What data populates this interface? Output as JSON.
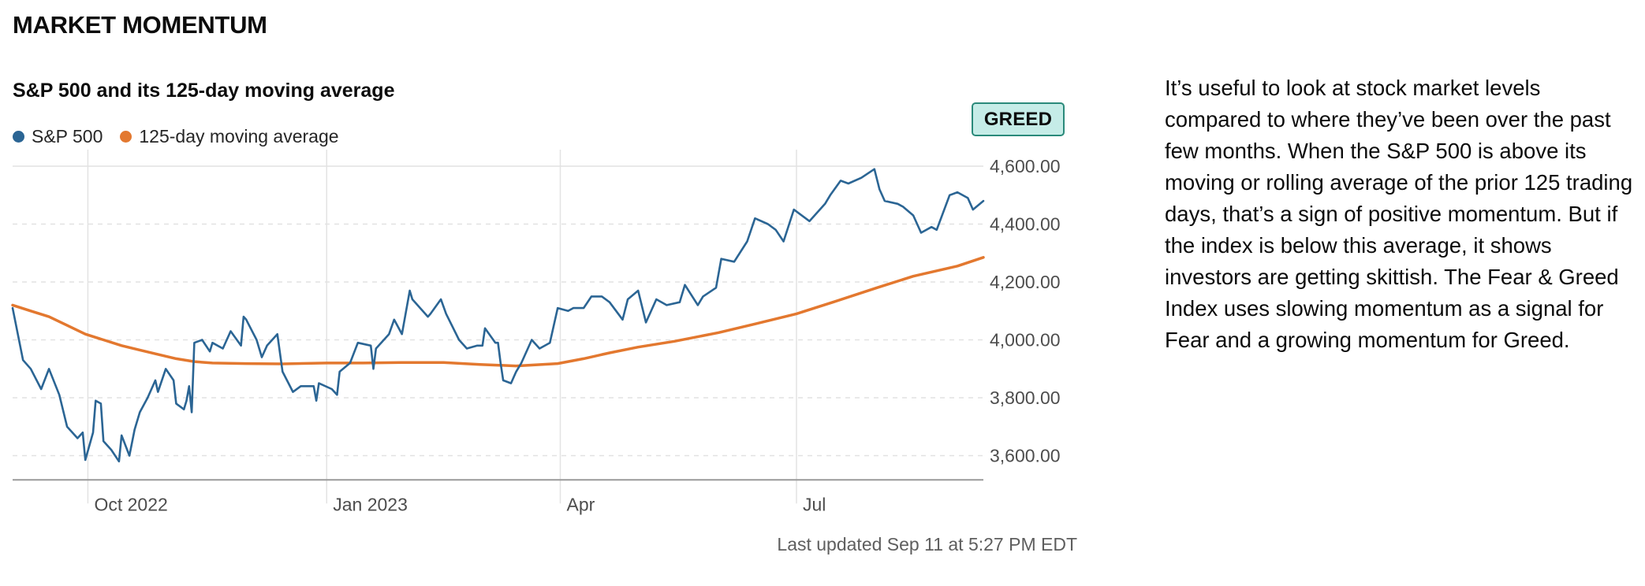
{
  "section_title": "MARKET MOMENTUM",
  "badge": {
    "label": "GREED",
    "background": "#c5ece7",
    "border": "#2a8a7a"
  },
  "last_updated": "Last updated Sep 11 at 5:27 PM EDT",
  "description": "It’s useful to look at stock market levels compared to where they’ve been over the past few months. When the S&P 500 is above its moving or rolling average of the prior 125 trading days, that’s a sign of positive momentum. But if the index is below this average, it shows investors are getting skittish. The Fear & Greed Index uses slowing momentum as a signal for Fear and a growing momentum for Greed.",
  "chart_data": {
    "type": "line",
    "title": "S&P 500 and its 125-day moving average",
    "xlabel": "",
    "ylabel": "",
    "x_range": [
      "2022-09-02",
      "2023-09-11"
    ],
    "ylim": [
      3500,
      4600
    ],
    "y_ticks": [
      {
        "value": 3600,
        "label": "3,600.00"
      },
      {
        "value": 3800,
        "label": "3,800.00"
      },
      {
        "value": 4000,
        "label": "4,000.00"
      },
      {
        "value": 4200,
        "label": "4,200.00"
      },
      {
        "value": 4400,
        "label": "4,400.00"
      },
      {
        "value": 4600,
        "label": "4,600.00"
      }
    ],
    "x_ticks": [
      {
        "date": "2022-10-01",
        "label": "Oct 2022"
      },
      {
        "date": "2023-01-01",
        "label": "Jan 2023"
      },
      {
        "date": "2023-04-01",
        "label": "Apr"
      },
      {
        "date": "2023-07-01",
        "label": "Jul"
      }
    ],
    "grid": "horizontal dashed, vertical solid at month ticks",
    "legend": "top-left",
    "series": [
      {
        "name": "S&P 500",
        "color": "#2b6594",
        "points": [
          [
            "2022-09-02",
            4110
          ],
          [
            "2022-09-06",
            3930
          ],
          [
            "2022-09-09",
            3900
          ],
          [
            "2022-09-13",
            3830
          ],
          [
            "2022-09-16",
            3900
          ],
          [
            "2022-09-20",
            3810
          ],
          [
            "2022-09-23",
            3700
          ],
          [
            "2022-09-27",
            3660
          ],
          [
            "2022-09-29",
            3680
          ],
          [
            "2022-09-30",
            3585
          ],
          [
            "2022-10-03",
            3680
          ],
          [
            "2022-10-04",
            3790
          ],
          [
            "2022-10-06",
            3780
          ],
          [
            "2022-10-07",
            3650
          ],
          [
            "2022-10-10",
            3620
          ],
          [
            "2022-10-13",
            3580
          ],
          [
            "2022-10-14",
            3670
          ],
          [
            "2022-10-17",
            3600
          ],
          [
            "2022-10-19",
            3690
          ],
          [
            "2022-10-21",
            3750
          ],
          [
            "2022-10-24",
            3800
          ],
          [
            "2022-10-27",
            3860
          ],
          [
            "2022-10-28",
            3820
          ],
          [
            "2022-10-31",
            3900
          ],
          [
            "2022-11-03",
            3860
          ],
          [
            "2022-11-04",
            3780
          ],
          [
            "2022-11-07",
            3760
          ],
          [
            "2022-11-08",
            3790
          ],
          [
            "2022-11-09",
            3840
          ],
          [
            "2022-11-10",
            3750
          ],
          [
            "2022-11-11",
            3990
          ],
          [
            "2022-11-14",
            4000
          ],
          [
            "2022-11-17",
            3960
          ],
          [
            "2022-11-18",
            3990
          ],
          [
            "2022-11-22",
            3970
          ],
          [
            "2022-11-25",
            4030
          ],
          [
            "2022-11-29",
            3980
          ],
          [
            "2022-11-30",
            4080
          ],
          [
            "2022-12-01",
            4070
          ],
          [
            "2022-12-05",
            4000
          ],
          [
            "2022-12-07",
            3940
          ],
          [
            "2022-12-09",
            3980
          ],
          [
            "2022-12-13",
            4020
          ],
          [
            "2022-12-15",
            3890
          ],
          [
            "2022-12-19",
            3820
          ],
          [
            "2022-12-22",
            3840
          ],
          [
            "2022-12-27",
            3840
          ],
          [
            "2022-12-28",
            3790
          ],
          [
            "2022-12-29",
            3850
          ],
          [
            "2023-01-03",
            3830
          ],
          [
            "2023-01-05",
            3810
          ],
          [
            "2023-01-06",
            3890
          ],
          [
            "2023-01-10",
            3920
          ],
          [
            "2023-01-13",
            3990
          ],
          [
            "2023-01-18",
            3980
          ],
          [
            "2023-01-19",
            3900
          ],
          [
            "2023-01-20",
            3970
          ],
          [
            "2023-01-25",
            4020
          ],
          [
            "2023-01-27",
            4070
          ],
          [
            "2023-01-30",
            4020
          ],
          [
            "2023-02-02",
            4170
          ],
          [
            "2023-02-03",
            4140
          ],
          [
            "2023-02-06",
            4110
          ],
          [
            "2023-02-09",
            4080
          ],
          [
            "2023-02-10",
            4090
          ],
          [
            "2023-02-14",
            4140
          ],
          [
            "2023-02-16",
            4090
          ],
          [
            "2023-02-21",
            4000
          ],
          [
            "2023-02-24",
            3970
          ],
          [
            "2023-02-28",
            3980
          ],
          [
            "2023-03-02",
            3980
          ],
          [
            "2023-03-03",
            4040
          ],
          [
            "2023-03-07",
            3990
          ],
          [
            "2023-03-08",
            3990
          ],
          [
            "2023-03-09",
            3920
          ],
          [
            "2023-03-10",
            3860
          ],
          [
            "2023-03-13",
            3850
          ],
          [
            "2023-03-15",
            3890
          ],
          [
            "2023-03-17",
            3920
          ],
          [
            "2023-03-21",
            4000
          ],
          [
            "2023-03-24",
            3970
          ],
          [
            "2023-03-28",
            3990
          ],
          [
            "2023-03-31",
            4110
          ],
          [
            "2023-04-04",
            4100
          ],
          [
            "2023-04-06",
            4110
          ],
          [
            "2023-04-10",
            4110
          ],
          [
            "2023-04-13",
            4150
          ],
          [
            "2023-04-17",
            4150
          ],
          [
            "2023-04-20",
            4130
          ],
          [
            "2023-04-25",
            4070
          ],
          [
            "2023-04-27",
            4140
          ],
          [
            "2023-05-01",
            4170
          ],
          [
            "2023-05-04",
            4060
          ],
          [
            "2023-05-08",
            4140
          ],
          [
            "2023-05-12",
            4120
          ],
          [
            "2023-05-17",
            4130
          ],
          [
            "2023-05-19",
            4190
          ],
          [
            "2023-05-24",
            4120
          ],
          [
            "2023-05-26",
            4150
          ],
          [
            "2023-05-31",
            4180
          ],
          [
            "2023-06-02",
            4280
          ],
          [
            "2023-06-07",
            4270
          ],
          [
            "2023-06-12",
            4340
          ],
          [
            "2023-06-15",
            4420
          ],
          [
            "2023-06-20",
            4400
          ],
          [
            "2023-06-23",
            4380
          ],
          [
            "2023-06-26",
            4340
          ],
          [
            "2023-06-30",
            4450
          ],
          [
            "2023-07-06",
            4410
          ],
          [
            "2023-07-12",
            4470
          ],
          [
            "2023-07-14",
            4500
          ],
          [
            "2023-07-18",
            4550
          ],
          [
            "2023-07-21",
            4540
          ],
          [
            "2023-07-26",
            4560
          ],
          [
            "2023-07-31",
            4590
          ],
          [
            "2023-08-02",
            4520
          ],
          [
            "2023-08-04",
            4480
          ],
          [
            "2023-08-09",
            4470
          ],
          [
            "2023-08-11",
            4460
          ],
          [
            "2023-08-15",
            4430
          ],
          [
            "2023-08-18",
            4370
          ],
          [
            "2023-08-22",
            4390
          ],
          [
            "2023-08-24",
            4380
          ],
          [
            "2023-08-29",
            4500
          ],
          [
            "2023-09-01",
            4510
          ],
          [
            "2023-09-05",
            4490
          ],
          [
            "2023-09-07",
            4450
          ],
          [
            "2023-09-11",
            4480
          ]
        ]
      },
      {
        "name": "125-day moving average",
        "color": "#e3782f",
        "points": [
          [
            "2022-09-02",
            4120
          ],
          [
            "2022-09-09",
            4100
          ],
          [
            "2022-09-16",
            4080
          ],
          [
            "2022-09-23",
            4050
          ],
          [
            "2022-09-30",
            4020
          ],
          [
            "2022-10-07",
            4000
          ],
          [
            "2022-10-14",
            3980
          ],
          [
            "2022-10-21",
            3965
          ],
          [
            "2022-10-28",
            3950
          ],
          [
            "2022-11-04",
            3935
          ],
          [
            "2022-11-11",
            3925
          ],
          [
            "2022-11-18",
            3920
          ],
          [
            "2022-12-01",
            3918
          ],
          [
            "2022-12-15",
            3917
          ],
          [
            "2023-01-01",
            3920
          ],
          [
            "2023-01-15",
            3920
          ],
          [
            "2023-02-01",
            3922
          ],
          [
            "2023-02-15",
            3922
          ],
          [
            "2023-03-01",
            3915
          ],
          [
            "2023-03-15",
            3910
          ],
          [
            "2023-03-31",
            3918
          ],
          [
            "2023-04-10",
            3935
          ],
          [
            "2023-04-20",
            3955
          ],
          [
            "2023-05-01",
            3975
          ],
          [
            "2023-05-15",
            3995
          ],
          [
            "2023-06-01",
            4025
          ],
          [
            "2023-06-15",
            4055
          ],
          [
            "2023-07-01",
            4090
          ],
          [
            "2023-07-15",
            4130
          ],
          [
            "2023-08-01",
            4180
          ],
          [
            "2023-08-15",
            4220
          ],
          [
            "2023-09-01",
            4255
          ],
          [
            "2023-09-11",
            4285
          ]
        ]
      }
    ]
  }
}
